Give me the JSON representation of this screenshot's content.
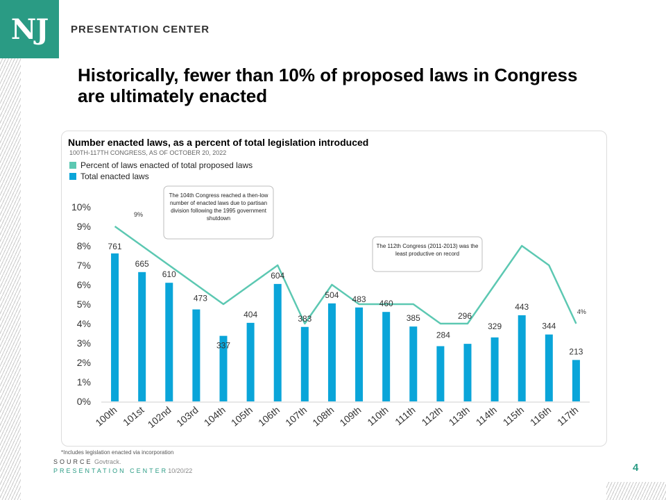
{
  "header": {
    "logo_text": "NJ",
    "brand": "PRESENTATION CENTER",
    "title": "Historically, fewer than 10% of proposed laws in Congress are ultimately enacted"
  },
  "chart_data": {
    "type": "bar",
    "title": "Number enacted laws, as a percent of total legislation introduced",
    "subtitle": "100TH-117TH CONGRESS,  AS OF OCTOBER  20, 2022",
    "categories": [
      "100th",
      "101st",
      "102nd",
      "103rd",
      "104th",
      "105th",
      "106th",
      "107th",
      "108th",
      "109th",
      "110th",
      "111th",
      "112th",
      "113th",
      "114th",
      "115th",
      "116th",
      "117th"
    ],
    "series": [
      {
        "name": "Total enacted laws",
        "type": "bar",
        "color": "#0aa5d9",
        "values": [
          761,
          665,
          610,
          473,
          337,
          404,
          604,
          383,
          504,
          483,
          460,
          385,
          284,
          296,
          329,
          443,
          344,
          213
        ]
      },
      {
        "name": "Percent of laws enacted of total proposed laws",
        "type": "line",
        "color": "#5cc8b2",
        "values": [
          9,
          8,
          7,
          6,
          5,
          6,
          7,
          4,
          6,
          5,
          5,
          5,
          4,
          4,
          6,
          8,
          7,
          4
        ]
      }
    ],
    "ylim": [
      0,
      10
    ],
    "yticks": [
      "0%",
      "1%",
      "2%",
      "3%",
      "4%",
      "5%",
      "6%",
      "7%",
      "8%",
      "9%",
      "10%"
    ],
    "line_labels": [
      {
        "index": 0,
        "text": "9%"
      },
      {
        "index": 17,
        "text": "4%"
      }
    ],
    "legend_position": "top-left",
    "grid": false
  },
  "annotations": [
    {
      "bold": "The 104th Congress",
      "text": " reached a then-low number of enacted laws due to partisan division following the 1995 government shutdown"
    },
    {
      "bold": "The 112th Congress",
      "text": " (2011-2013) was the least productive on record"
    }
  ],
  "footer": {
    "footnote": "*Includes legislation enacted via incorporation",
    "source_label": "SOURCE",
    "source_value": "Govtrack.",
    "presenter_label": "PRESENTATION CENTER",
    "date": "10/20/22",
    "page_number": "4"
  }
}
